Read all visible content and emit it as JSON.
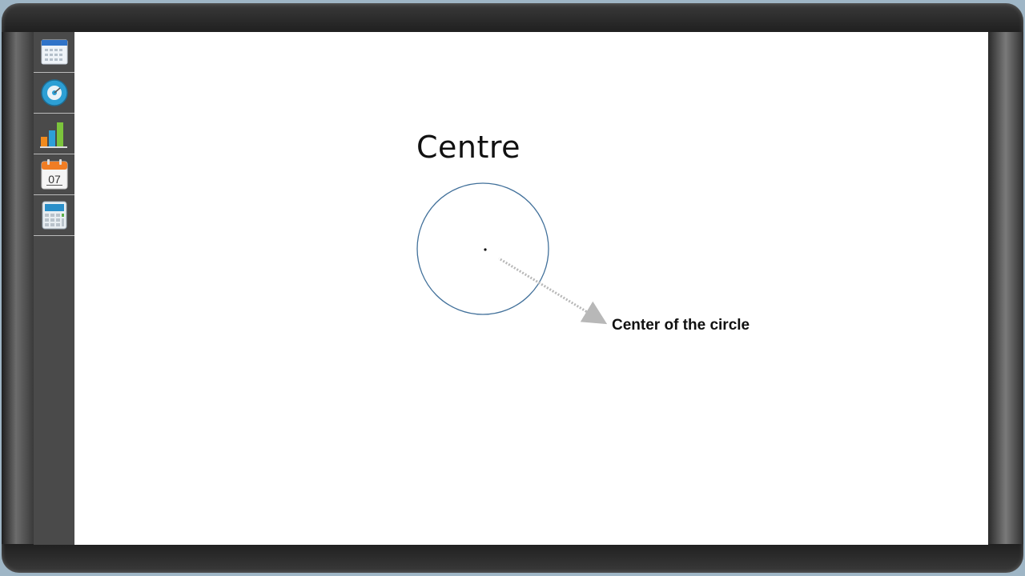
{
  "slide": {
    "title": "Centre",
    "annotation": "Center of the circle"
  },
  "toolbar": {
    "tools": [
      {
        "name": "calendar-grid-icon"
      },
      {
        "name": "disc-icon"
      },
      {
        "name": "bar-chart-icon"
      },
      {
        "name": "date-calendar-icon",
        "text": "07"
      },
      {
        "name": "calculator-icon"
      }
    ]
  },
  "colors": {
    "circle_stroke": "#41709a",
    "arrow": "#b8b8b8",
    "canvas": "#ffffff",
    "sidebar": "#4a4a4a"
  }
}
